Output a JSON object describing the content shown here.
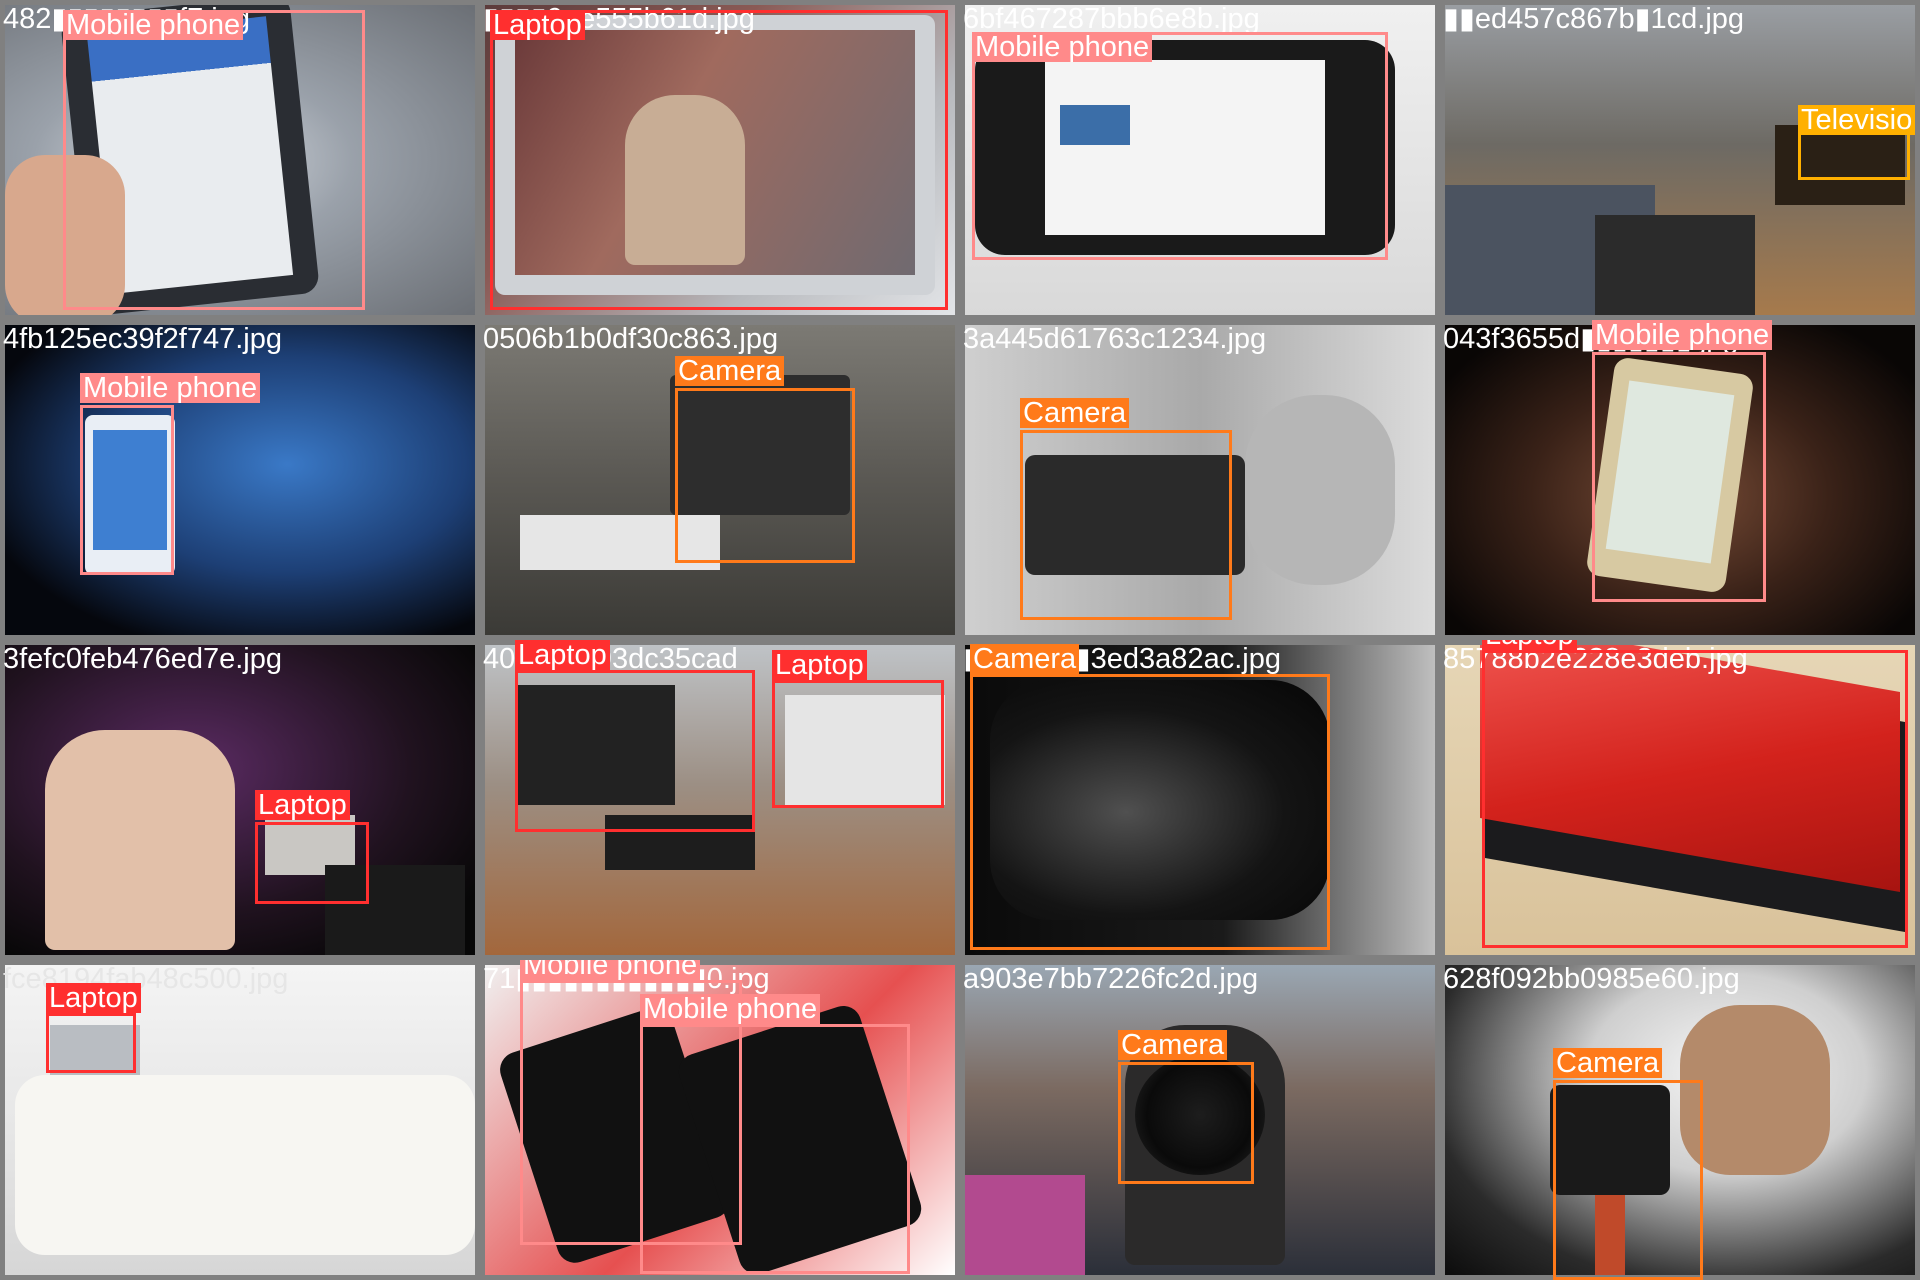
{
  "mosaic": {
    "tiles": [
      {
        "filename": "482▮▮▮▮▮▮▮▮f7.jpg",
        "scene": "hand holding phone showing tide chart web page",
        "detections": [
          {
            "label": "Mobile phone",
            "color": "#ff8a8a"
          }
        ]
      },
      {
        "filename": "▮▮▮▮9ee555b61d.jpg",
        "scene": "laptop screen with video call",
        "detections": [
          {
            "label": "Laptop",
            "color": "#ff2f2f"
          }
        ]
      },
      {
        "filename": "6bf467287bbb6e8b.jpg",
        "scene": "smartphone showing browser page",
        "detections": [
          {
            "label": "Mobile phone",
            "color": "#ff8a8a"
          }
        ]
      },
      {
        "filename": "▮▮ed457c867b▮1cd.jpg",
        "scene": "living room with sofa and television",
        "detections": [
          {
            "label": "Televisio",
            "color": "#ffb000"
          }
        ]
      },
      {
        "filename": "4fb125ec39f2f747.jpg",
        "scene": "phone held in front of blue projection screen",
        "detections": [
          {
            "label": "Mobile phone",
            "color": "#ff8a8a"
          }
        ]
      },
      {
        "filename": "0506b1b0df30c863.jpg",
        "scene": "instant camera on table with film box",
        "detections": [
          {
            "label": "Camera",
            "color": "#ff7a1a"
          }
        ]
      },
      {
        "filename": "3a445d61763c1234.jpg",
        "scene": "man with glasses holding camcorder",
        "detections": [
          {
            "label": "Camera",
            "color": "#ff7a1a"
          }
        ]
      },
      {
        "filename": "043f3655d▮▮▮▮▮▮▮.jpg",
        "scene": "hand holding phone in dark",
        "detections": [
          {
            "label": "Mobile phone",
            "color": "#ff8a8a"
          }
        ]
      },
      {
        "filename": "3fefc0feb476ed7e.jpg",
        "scene": "DJ at a party with laptop",
        "detections": [
          {
            "label": "Laptop",
            "color": "#ff2f2f"
          }
        ]
      },
      {
        "filename": "403656193dc35cad",
        "scene": "table with router and laptops",
        "detections": [
          {
            "label": "Laptop",
            "color": "#ff2f2f"
          },
          {
            "label": "Laptop",
            "color": "#ff2f2f"
          }
        ]
      },
      {
        "filename": "▮▮▮▮▮▮▮▮3ed3a82ac.jpg",
        "scene": "close-up of camera lens",
        "detections": [
          {
            "label": "Camera",
            "color": "#ff7a1a"
          }
        ]
      },
      {
        "filename": "85788b2e228e3deb.jpg",
        "scene": "red ThinkPad laptops stacked",
        "detections": [
          {
            "label": "Laptop",
            "color": "#ff2f2f"
          }
        ]
      },
      {
        "filename": "fce8194fab48c500.jpg",
        "scene": "white sofa with pillows and small laptop",
        "detections": [
          {
            "label": "Laptop",
            "color": "#ff2f2f"
          }
        ]
      },
      {
        "filename": "71▮▮▮▮▮▮▮▮▮▮▮▮0.jpg",
        "scene": "two smartphones on red and white box",
        "detections": [
          {
            "label": "Mobile phone",
            "color": "#ff8a8a"
          },
          {
            "label": "Mobile phone",
            "color": "#ff8a8a"
          }
        ]
      },
      {
        "filename": "a903e7bb7226fc2d.jpg",
        "scene": "photographer pointing camera on street",
        "detections": [
          {
            "label": "Camera",
            "color": "#ff7a1a"
          }
        ]
      },
      {
        "filename": "628f092bb0985e60.jpg",
        "scene": "man with DSLR on tripod",
        "detections": [
          {
            "label": "Camera",
            "color": "#ff7a1a"
          }
        ]
      }
    ]
  }
}
